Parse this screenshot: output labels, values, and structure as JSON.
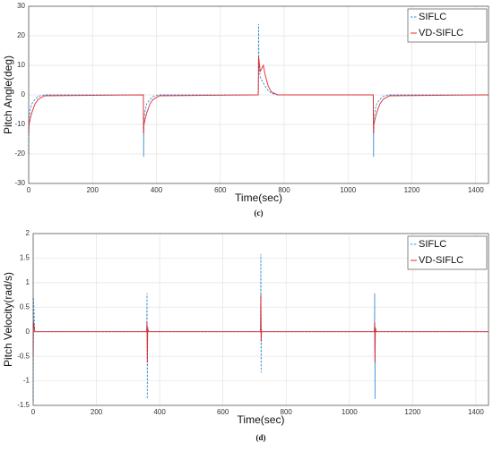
{
  "chart_data": [
    {
      "type": "line",
      "xlabel": "Time(sec)",
      "ylabel": "Pitch Angle(deg)",
      "caption": "(c)",
      "x": [
        0,
        1,
        5,
        10,
        20,
        30,
        50,
        359,
        360,
        361,
        365,
        370,
        380,
        390,
        410,
        719,
        720,
        721,
        725,
        730,
        735,
        740,
        750,
        760,
        780,
        1079,
        1080,
        1081,
        1085,
        1090,
        1100,
        1110,
        1130,
        1440
      ],
      "series": [
        {
          "name": "SIFLC",
          "color": "#3b8fd9",
          "dash": true,
          "values": [
            -20,
            -8,
            -5,
            -3,
            -1.5,
            -0.5,
            0,
            0,
            -21,
            -8,
            -5,
            -3,
            -1.5,
            -0.5,
            0,
            0,
            24,
            10,
            6,
            5,
            4,
            3,
            1.5,
            0.5,
            0,
            0,
            -21,
            -8,
            -5,
            -3,
            -1.5,
            -0.5,
            0,
            0
          ]
        },
        {
          "name": "VD-SIFLC",
          "color": "#e0282c",
          "dash": false,
          "values": [
            -13,
            -10,
            -8,
            -6,
            -3,
            -1.5,
            -0.3,
            0,
            -13,
            -10,
            -8,
            -6,
            -3,
            -1.5,
            -0.3,
            0,
            13,
            12,
            8,
            9,
            10,
            7,
            3,
            1,
            0,
            0,
            -13,
            -10,
            -8,
            -6,
            -3,
            -1.5,
            -0.3,
            0
          ]
        }
      ],
      "xlim": [
        0,
        1440
      ],
      "xticks": [
        0,
        200,
        400,
        600,
        800,
        1000,
        1200,
        1400
      ],
      "ylim": [
        -30,
        30
      ],
      "yticks": [
        -30,
        -20,
        -10,
        0,
        10,
        20,
        30
      ],
      "grid": true,
      "legend": "upper right"
    },
    {
      "type": "line",
      "xlabel": "Time(sec)",
      "ylabel": "Pitch Velocity(rad/s)",
      "caption": "(d)",
      "x": [
        0,
        1,
        5,
        359,
        360,
        361,
        362,
        365,
        719,
        720,
        721,
        722,
        725,
        1079,
        1080,
        1081,
        1082,
        1085,
        1440
      ],
      "series": [
        {
          "name": "SIFLC",
          "color": "#3b8fd9",
          "dash": true,
          "values": [
            -1.4,
            0.7,
            0,
            0,
            0.78,
            -1.37,
            0.1,
            0,
            0,
            1.58,
            -0.83,
            0.05,
            0,
            0,
            0.78,
            -1.37,
            0.1,
            0,
            0
          ]
        },
        {
          "name": "VD-SIFLC",
          "color": "#e0282c",
          "dash": false,
          "values": [
            -0.5,
            0.2,
            0,
            0,
            0.2,
            -0.63,
            0.05,
            0,
            0,
            0.75,
            -0.2,
            0,
            0,
            0,
            0.2,
            -0.63,
            0.05,
            0,
            0
          ]
        }
      ],
      "xlim": [
        0,
        1440
      ],
      "xticks": [
        0,
        200,
        400,
        600,
        800,
        1000,
        1200,
        1400
      ],
      "ylim": [
        -1.5,
        2
      ],
      "yticks": [
        -1.5,
        -1,
        -0.5,
        0,
        0.5,
        1,
        1.5,
        2
      ],
      "grid": true,
      "legend": "upper right"
    }
  ]
}
